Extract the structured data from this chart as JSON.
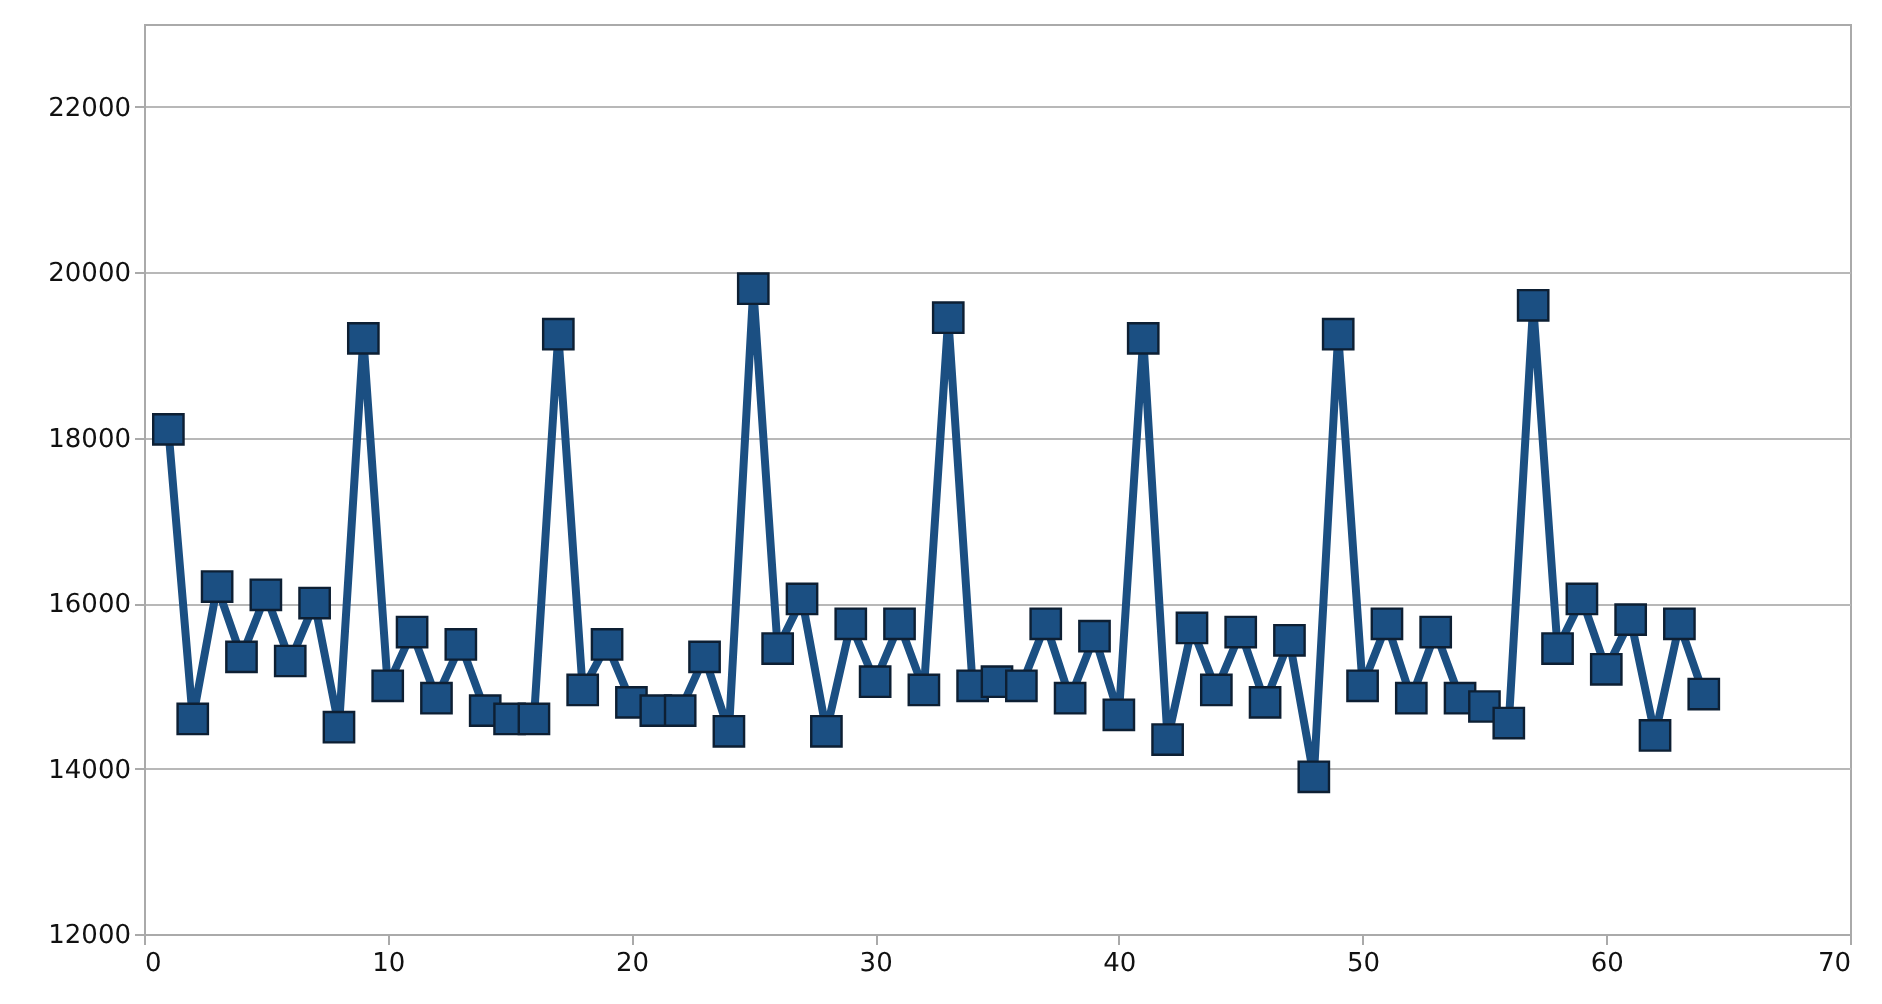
{
  "chart_data": {
    "type": "line",
    "marker": "square",
    "grid": "y",
    "color": "#1b4f82",
    "x": [
      1,
      2,
      3,
      4,
      5,
      6,
      7,
      8,
      9,
      10,
      11,
      12,
      13,
      14,
      15,
      16,
      17,
      18,
      19,
      20,
      21,
      22,
      23,
      24,
      25,
      26,
      27,
      28,
      29,
      30,
      31,
      32,
      33,
      34,
      35,
      36,
      37,
      38,
      39,
      40,
      41,
      42,
      43,
      44,
      45,
      46,
      47,
      48,
      49,
      50,
      51,
      52,
      53,
      54,
      55,
      56,
      57,
      58,
      59,
      60,
      61,
      62,
      63,
      64
    ],
    "values": [
      18100,
      14600,
      16200,
      15350,
      16100,
      15300,
      16000,
      14500,
      19200,
      15000,
      15650,
      14850,
      15500,
      14700,
      14600,
      14600,
      19250,
      14950,
      15500,
      14800,
      14700,
      14700,
      15350,
      14450,
      19800,
      15450,
      16050,
      14450,
      15750,
      15050,
      15750,
      14950,
      19450,
      15000,
      15050,
      15000,
      15750,
      14850,
      15600,
      14650,
      19200,
      14350,
      15700,
      14950,
      15650,
      14800,
      15550,
      13900,
      19250,
      15000,
      15750,
      14850,
      15650,
      14850,
      14750,
      14550,
      19600,
      15450,
      16050,
      15200,
      15800,
      14400,
      15750,
      14900
    ],
    "xlim": [
      0,
      70
    ],
    "xticks": [
      0,
      10,
      20,
      30,
      40,
      50,
      60,
      70
    ],
    "ylim": [
      12000,
      23000
    ],
    "yticks": [
      12000,
      14000,
      16000,
      18000,
      20000,
      22000
    ]
  }
}
